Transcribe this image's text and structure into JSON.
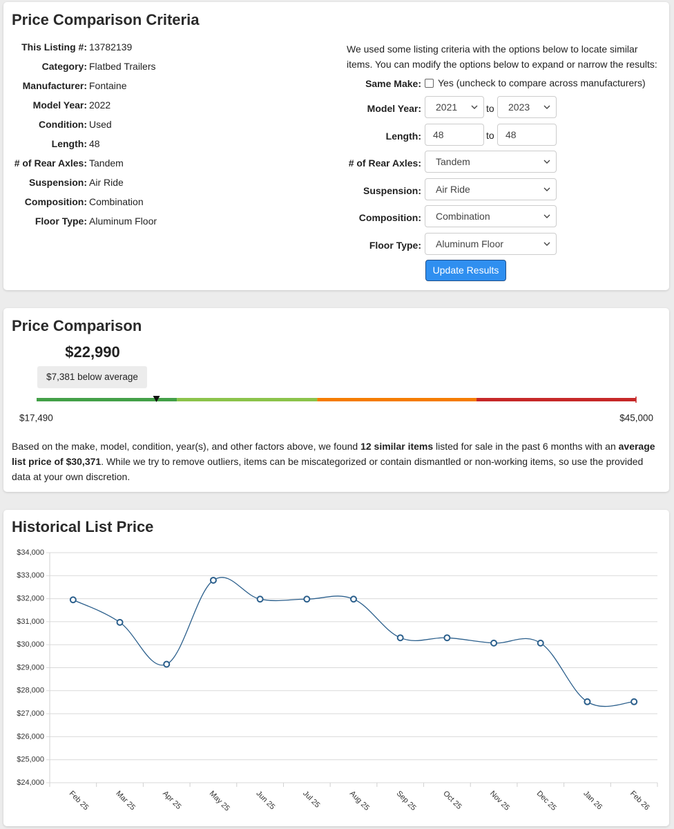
{
  "criteria": {
    "title": "Price Comparison Criteria",
    "listing": [
      {
        "label": "This Listing #:",
        "value": "13782139"
      },
      {
        "label": "Category:",
        "value": "Flatbed Trailers"
      },
      {
        "label": "Manufacturer:",
        "value": "Fontaine"
      },
      {
        "label": "Model Year:",
        "value": "2022"
      },
      {
        "label": "Condition:",
        "value": "Used"
      },
      {
        "label": "Length:",
        "value": "48"
      },
      {
        "label": "# of Rear Axles:",
        "value": "Tandem"
      },
      {
        "label": "Suspension:",
        "value": "Air Ride"
      },
      {
        "label": "Composition:",
        "value": "Combination"
      },
      {
        "label": "Floor Type:",
        "value": "Aluminum Floor"
      }
    ],
    "intro": "We used some listing criteria with the options below to locate similar items. You can modify the options below to expand or narrow the results:",
    "same_make": {
      "label": "Same Make:",
      "option": "Yes (uncheck to compare across manufacturers)"
    },
    "model_year": {
      "label": "Model Year:",
      "from": "2021",
      "to_word": "to",
      "to": "2023"
    },
    "length": {
      "label": "Length:",
      "from": "48",
      "to_word": "to",
      "to": "48"
    },
    "selects": [
      {
        "label": "# of Rear Axles:",
        "value": "Tandem"
      },
      {
        "label": "Suspension:",
        "value": "Air Ride"
      },
      {
        "label": "Composition:",
        "value": "Combination"
      },
      {
        "label": "Floor Type:",
        "value": "Aluminum Floor"
      }
    ],
    "button": "Update Results"
  },
  "price_comparison": {
    "title": "Price Comparison",
    "badge": "$7,381 below average",
    "gauge": {
      "min": {
        "value": 17490,
        "label": "$17,490"
      },
      "max": {
        "value": 45000,
        "label": "$45,000"
      },
      "price": {
        "value": 22990,
        "label": "$22,990"
      },
      "segments": [
        {
          "to": 23930,
          "color": "#43a047"
        },
        {
          "to": 30371,
          "color": "#8bc34a"
        },
        {
          "to": 37680,
          "color": "#f57c00"
        },
        {
          "to": 45000,
          "color": "#c62828"
        }
      ]
    },
    "summary": [
      {
        "text": "Based on the make, model, condition, year(s), and other factors above, we found ",
        "bold": false
      },
      {
        "text": "12 similar items",
        "bold": true
      },
      {
        "text": " listed for sale in the past 6 months with an ",
        "bold": false
      },
      {
        "text": "average list price of $30,371",
        "bold": true
      },
      {
        "text": ". While we try to remove outliers, items can be miscategorized or contain dismantled or non-working items, so use the provided data at your own discretion.",
        "bold": false
      }
    ]
  },
  "chart_data": {
    "type": "line",
    "title": "Historical List Price",
    "categories": [
      "Feb 25",
      "Mar 25",
      "Apr 25",
      "May 25",
      "Jun 25",
      "Jul 25",
      "Aug 25",
      "Sep 25",
      "Oct 25",
      "Nov 25",
      "Dec 25",
      "Jan 26",
      "Feb 26"
    ],
    "series": [
      {
        "color": "#2b5f8c",
        "values": [
          31950,
          30970,
          29150,
          32800,
          31980,
          31980,
          31980,
          30300,
          30300,
          30070,
          30070,
          27520,
          27520
        ]
      }
    ],
    "ylim": [
      24000,
      34000
    ],
    "yticks": [
      {
        "value": 24000,
        "label": "$24,000"
      },
      {
        "value": 25000,
        "label": "$25,000"
      },
      {
        "value": 26000,
        "label": "$26,000"
      },
      {
        "value": 27000,
        "label": "$27,000"
      },
      {
        "value": 28000,
        "label": "$28,000"
      },
      {
        "value": 29000,
        "label": "$29,000"
      },
      {
        "value": 30000,
        "label": "$30,000"
      },
      {
        "value": 31000,
        "label": "$31,000"
      },
      {
        "value": 32000,
        "label": "$32,000"
      },
      {
        "value": 33000,
        "label": "$33,000"
      },
      {
        "value": 34000,
        "label": "$34,000"
      }
    ],
    "grid": true
  }
}
